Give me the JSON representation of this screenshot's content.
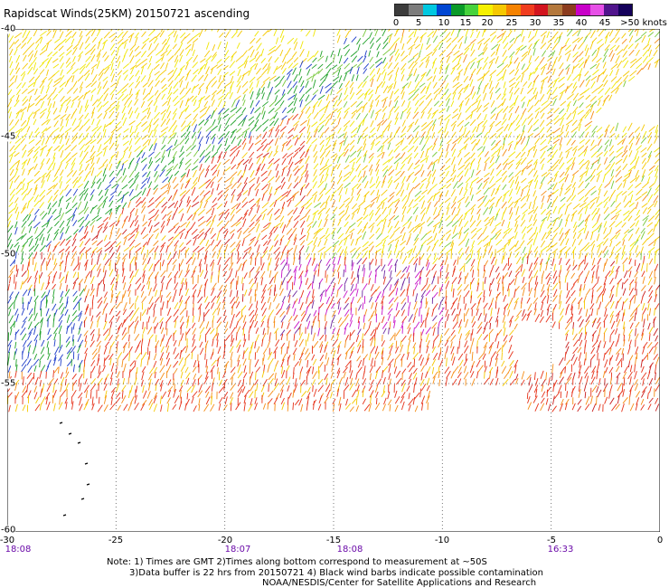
{
  "title": "Rapidscat Winds(25KM) 20150721 ascending",
  "legend": {
    "colors": [
      "#3c3c3c",
      "#7c7c7c",
      "#00c8e0",
      "#0046d2",
      "#0a9a28",
      "#46d23c",
      "#f5f000",
      "#f5c800",
      "#f58200",
      "#f03c1e",
      "#d2141e",
      "#b4783c",
      "#8c3c1e",
      "#c800c8",
      "#e650e6",
      "#50148c",
      "#14005a"
    ],
    "labels": [
      "0",
      "5",
      "10",
      "15",
      "20",
      "25",
      "30",
      "35",
      "40",
      "45",
      ">50 knots"
    ]
  },
  "map": {
    "lon_ticks": [
      "-30",
      "-25",
      "-20",
      "-15",
      "-10",
      "-5",
      "0"
    ],
    "lat_ticks": [
      "-40",
      "-45",
      "-50",
      "-55",
      "-60"
    ],
    "lon_range": [
      -30,
      0
    ],
    "lat_range": [
      -40,
      -60
    ],
    "grid": "dotted",
    "time_labels": [
      "18:08",
      "18:07",
      "18:08",
      "16:33"
    ],
    "time_label_lon": [
      -29.5,
      -20,
      -15,
      -5
    ]
  },
  "notes": {
    "line1": "Note: 1) Times are GMT 2)Times along bottom correspond to measurement at ~50S",
    "line2": "3)Data buffer is 22 hrs from 20150721 4) Black wind barbs indicate possible contamination",
    "line3": "NOAA/NESDIS/Center for Satellite Applications and Research"
  }
}
